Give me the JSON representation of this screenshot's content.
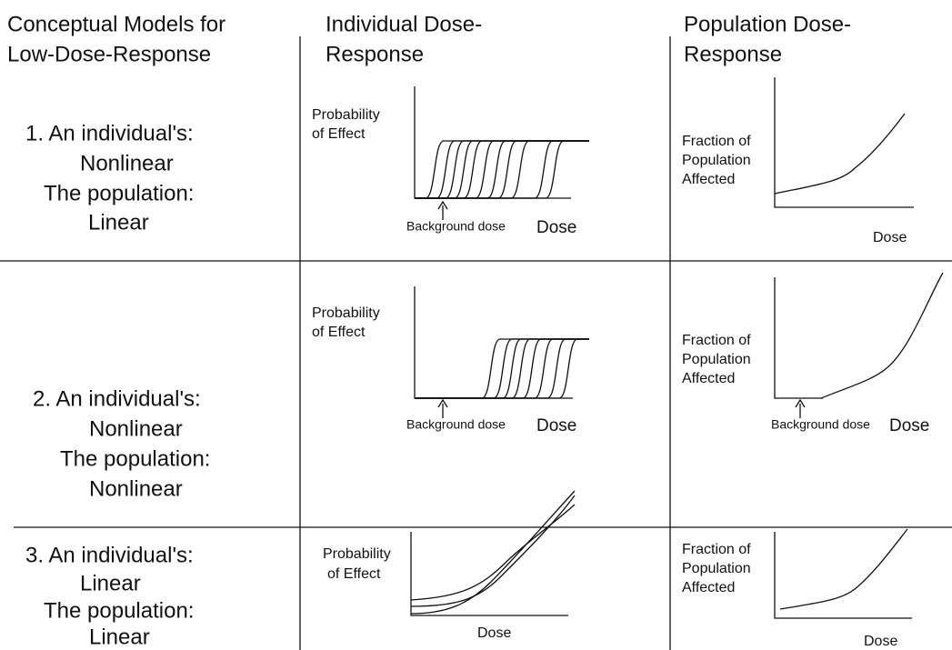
{
  "headers": [
    [
      "Conceptual Models for",
      "Low-Dose-Response"
    ],
    [
      "Individual Dose-",
      "Response"
    ],
    [
      "Population Dose-",
      "Response"
    ]
  ],
  "rows": [
    {
      "lines": [
        "1. An individual's:",
        "Nonlinear",
        "The population:",
        "Linear"
      ],
      "individual": {
        "ylabel": [
          "Probability",
          "of Effect"
        ],
        "annotation": "Background dose",
        "xlabel": "Dose"
      },
      "population": {
        "ylabel": [
          "Fraction of",
          "Population",
          "Affected"
        ],
        "xlabel": "Dose"
      }
    },
    {
      "lines": [
        "2. An individual's:",
        "Nonlinear",
        "The population:",
        "Nonlinear"
      ],
      "individual": {
        "ylabel": [
          "Probability",
          "of Effect"
        ],
        "annotation": "Background dose",
        "xlabel": "Dose"
      },
      "population": {
        "ylabel": [
          "Fraction of",
          "Population",
          "Affected"
        ],
        "annotation": "Background dose",
        "xlabel": "Dose"
      }
    },
    {
      "lines": [
        "3. An individual's:",
        "Linear",
        "The population:",
        "Linear"
      ],
      "individual": {
        "ylabel": [
          "Probability",
          "of Effect"
        ],
        "xlabel": "Dose"
      },
      "population": {
        "ylabel": [
          "Fraction of",
          "Population",
          "Affected"
        ],
        "xlabel": "Dose"
      }
    }
  ]
}
